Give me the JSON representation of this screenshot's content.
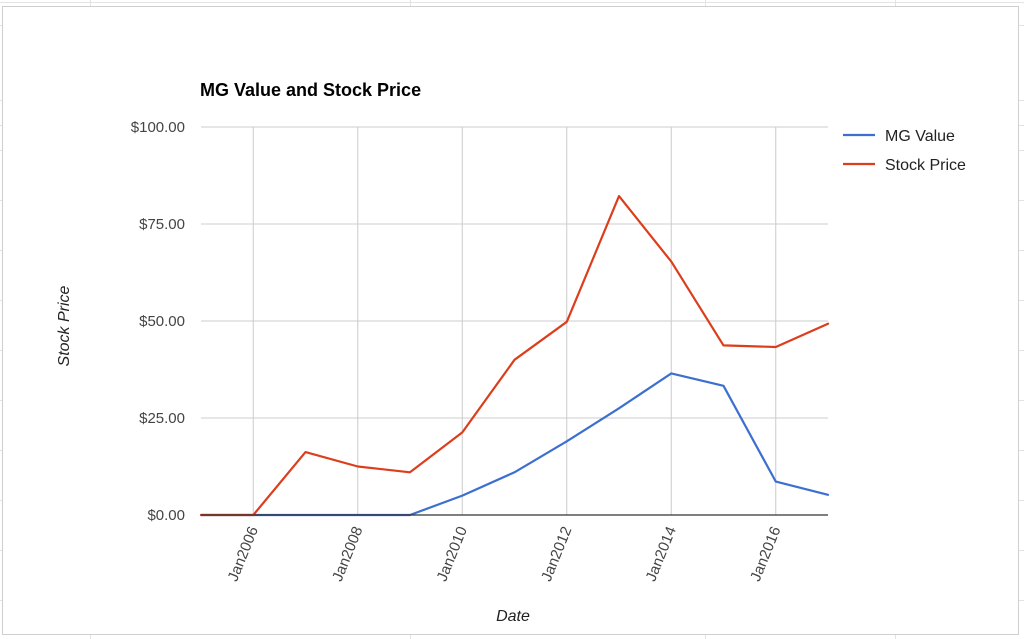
{
  "chart_data": {
    "type": "line",
    "title": "MG Value and Stock Price",
    "xlabel": "Date",
    "ylabel": "Stock Price",
    "x_ticks": [
      "Jan2006",
      "Jan2008",
      "Jan2010",
      "Jan2012",
      "Jan2014",
      "Jan2016"
    ],
    "y_ticks": [
      "$0.00",
      "$25.00",
      "$50.00",
      "$75.00",
      "$100.00"
    ],
    "ylim": [
      0,
      100
    ],
    "xlim": [
      "2005-01",
      "2017-01"
    ],
    "grid": true,
    "legend_position": "right",
    "series": [
      {
        "name": "MG Value",
        "color": "#3c6fd0",
        "points": [
          {
            "x": "2005-01",
            "y": 0
          },
          {
            "x": "2006-01",
            "y": 0
          },
          {
            "x": "2007-01",
            "y": 0
          },
          {
            "x": "2008-01",
            "y": 0
          },
          {
            "x": "2009-01",
            "y": 0
          },
          {
            "x": "2010-01",
            "y": 5
          },
          {
            "x": "2011-01",
            "y": 11
          },
          {
            "x": "2012-01",
            "y": 19
          },
          {
            "x": "2013-01",
            "y": 27.5
          },
          {
            "x": "2014-01",
            "y": 36.5
          },
          {
            "x": "2015-01",
            "y": 33.3
          },
          {
            "x": "2016-01",
            "y": 8.6
          },
          {
            "x": "2017-01",
            "y": 5.2
          }
        ]
      },
      {
        "name": "Stock Price",
        "color": "#dc3e1c",
        "points": [
          {
            "x": "2005-01",
            "y": 0
          },
          {
            "x": "2006-01",
            "y": 0
          },
          {
            "x": "2007-01",
            "y": 16.2
          },
          {
            "x": "2008-01",
            "y": 12.5
          },
          {
            "x": "2009-01",
            "y": 11
          },
          {
            "x": "2010-01",
            "y": 21.3
          },
          {
            "x": "2011-01",
            "y": 40
          },
          {
            "x": "2012-01",
            "y": 49.8
          },
          {
            "x": "2013-01",
            "y": 82.2
          },
          {
            "x": "2014-01",
            "y": 65.3
          },
          {
            "x": "2015-01",
            "y": 43.7
          },
          {
            "x": "2016-01",
            "y": 43.3
          },
          {
            "x": "2017-01",
            "y": 49.3
          }
        ]
      }
    ]
  }
}
